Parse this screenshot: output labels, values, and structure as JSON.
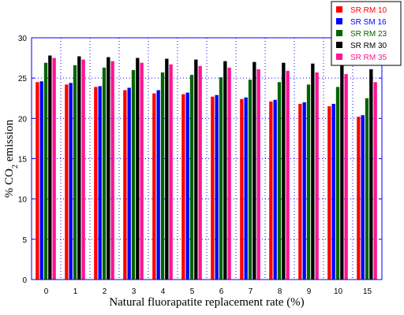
{
  "chart_data": {
    "type": "bar",
    "xlabel": "Natural fluorapatite replacement rate (%)",
    "ylabel_prefix": "% CO",
    "ylabel_sub": "2",
    "ylabel_suffix": " emission",
    "ylim": [
      0,
      30
    ],
    "yticks": [
      0,
      5,
      10,
      15,
      20,
      25,
      30
    ],
    "grid": true,
    "legend_position": "top-right",
    "categories": [
      "0",
      "1",
      "2",
      "3",
      "4",
      "5",
      "6",
      "7",
      "8",
      "9",
      "10",
      "15"
    ],
    "series": [
      {
        "name": "SR RM 10",
        "color": "#ff0000",
        "label_color": "#ff0000",
        "values": [
          24.5,
          24.2,
          23.9,
          23.5,
          23.1,
          23.0,
          22.7,
          22.4,
          22.1,
          21.8,
          21.5,
          20.2
        ]
      },
      {
        "name": "SR SM 16",
        "color": "#0000ff",
        "label_color": "#0000ff",
        "values": [
          24.6,
          24.4,
          24.0,
          23.8,
          23.5,
          23.2,
          22.9,
          22.6,
          22.3,
          22.0,
          21.8,
          20.4
        ]
      },
      {
        "name": "SR RM 23",
        "color": "#006400",
        "label_color": "#006400",
        "values": [
          26.9,
          26.6,
          26.3,
          26.0,
          25.7,
          25.4,
          25.1,
          24.8,
          24.5,
          24.2,
          23.9,
          22.5
        ]
      },
      {
        "name": "SR RM 30",
        "color": "#000000",
        "label_color": "#000000",
        "values": [
          27.8,
          27.7,
          27.6,
          27.5,
          27.4,
          27.3,
          27.1,
          27.0,
          26.9,
          26.8,
          26.6,
          26.1
        ]
      },
      {
        "name": "SR RM 35",
        "color": "#ff1493",
        "label_color": "#ff1493",
        "values": [
          27.5,
          27.3,
          27.1,
          26.9,
          26.7,
          26.5,
          26.3,
          26.1,
          25.9,
          25.7,
          25.5,
          24.5
        ]
      }
    ]
  }
}
